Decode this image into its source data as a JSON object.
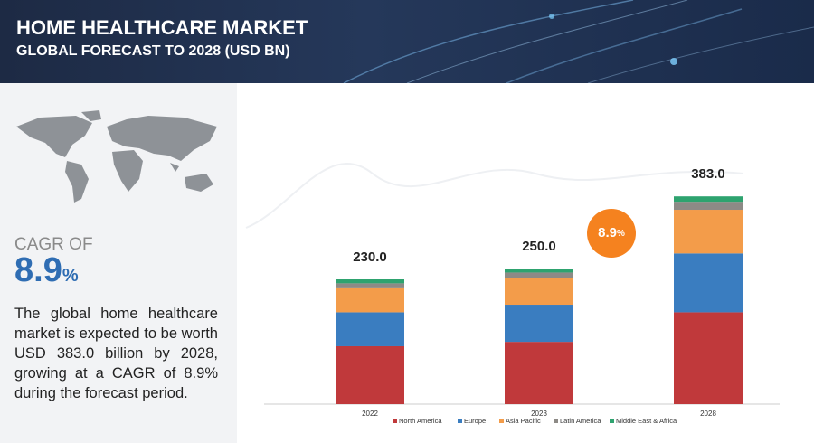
{
  "chart_data": {
    "type": "stacked-bar",
    "title": "HOME HEALTHCARE MARKET",
    "subtitle": "GLOBAL FORECAST TO 2028 (USD BN)",
    "categories": [
      "2022",
      "2023",
      "2028"
    ],
    "series": [
      {
        "name": "North America",
        "color": "#c0393b",
        "values": [
          106.7,
          114.8,
          169.3
        ]
      },
      {
        "name": "Europe",
        "color": "#3a7dc0",
        "values": [
          62.6,
          68.5,
          108.5
        ]
      },
      {
        "name": "Asia Pacific",
        "color": "#f39c4a",
        "values": [
          44.2,
          50.0,
          80.5
        ]
      },
      {
        "name": "Latin America",
        "color": "#8d8a86",
        "values": [
          9.2,
          9.3,
          14.8
        ]
      },
      {
        "name": "Middle East & Africa",
        "color": "#2ea36f",
        "values": [
          7.3,
          7.4,
          9.9
        ]
      }
    ],
    "totals": [
      230,
      250,
      383
    ],
    "total_labels": [
      "230.0",
      "250.0",
      "383.0"
    ]
  },
  "cagr": {
    "label": "CAGR OF",
    "value": "8.9",
    "unit": "%",
    "description": "The global home healthcare market is expected to be worth USD 383.0 billion by 2028, growing at a CAGR of 8.9% during the forecast period."
  }
}
